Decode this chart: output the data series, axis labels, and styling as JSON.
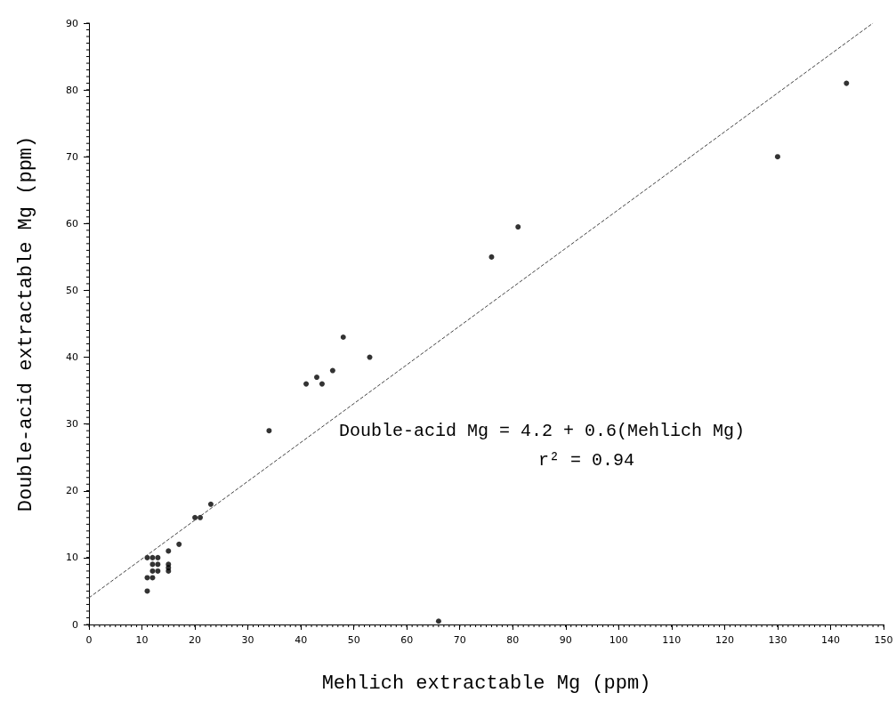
{
  "chart_data": {
    "type": "scatter",
    "xlabel": "Mehlich extractable Mg (ppm)",
    "ylabel": "Double-acid extractable Mg (ppm)",
    "xlim": [
      0,
      150
    ],
    "xticks": [
      0,
      10,
      20,
      30,
      40,
      50,
      60,
      70,
      80,
      90,
      100,
      110,
      120,
      130,
      140,
      150
    ],
    "ylim": [
      0,
      90
    ],
    "yticks": [
      0,
      10,
      20,
      30,
      40,
      50,
      60,
      70,
      80,
      90
    ],
    "grid": false,
    "marker": "circle",
    "annotations": [
      "Double-acid Mg = 4.2 + 0.6(Mehlich Mg)",
      "r² = 0.94"
    ],
    "series": [
      {
        "color": "#000000",
        "x": [
          11,
          11,
          11,
          12,
          12,
          12,
          12,
          13,
          13,
          13,
          15,
          15,
          15,
          15,
          17,
          20,
          21,
          23,
          34,
          41,
          43,
          44,
          46,
          48,
          53,
          66,
          76,
          81,
          130,
          143
        ],
        "values": [
          10,
          7,
          5,
          10,
          9,
          8,
          7,
          10,
          9,
          8,
          11,
          9,
          8.5,
          8,
          12,
          16,
          16,
          18,
          29,
          36,
          37,
          36,
          38,
          43,
          40,
          0.5,
          55,
          59.5,
          70,
          81
        ]
      },
      {
        "type": "line",
        "color": "#444444",
        "line_style": "dashed",
        "marker": "none",
        "x": [
          0,
          148
        ],
        "values": [
          4,
          90
        ]
      }
    ]
  }
}
